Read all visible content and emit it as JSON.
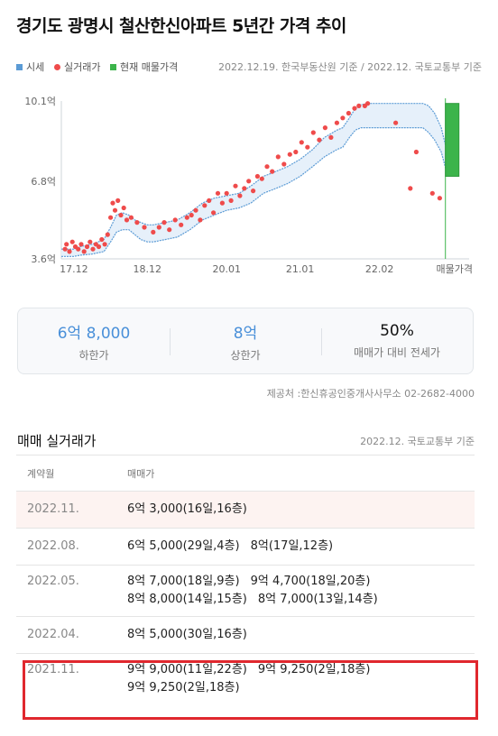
{
  "header": {
    "title": "경기도 광명시 철산한신아파트 5년간 가격 추이"
  },
  "legend": {
    "items": [
      {
        "label": "시세",
        "color": "#5b9bd5",
        "shape": "square"
      },
      {
        "label": "실거래가",
        "color": "#ef4b4b",
        "shape": "dot"
      },
      {
        "label": "현재 매물가격",
        "color": "#3cb44b",
        "shape": "square"
      }
    ],
    "source_note": "2022.12.19. 한국부동산원 기준 / 2022.12. 국토교통부 기준"
  },
  "chart_data": {
    "type": "scatter",
    "y_ticks": [
      "10.1억",
      "6.8억",
      "3.6억"
    ],
    "y_tick_values": [
      10.1,
      6.8,
      3.6
    ],
    "ylim": [
      3.6,
      10.1
    ],
    "x_ticks": [
      "17.12",
      "18.12",
      "20.01",
      "21.01",
      "22.02",
      "매물가격"
    ],
    "x_tick_values": [
      2017.92,
      2018.92,
      2020.0,
      2021.0,
      2022.08,
      2023.1
    ],
    "xlim": [
      2017.75,
      2023.3
    ],
    "series": [
      {
        "name": "시세",
        "type": "area-band",
        "color": "#5b9bd5",
        "x": [
          2017.75,
          2017.92,
          2018.0,
          2018.17,
          2018.33,
          2018.42,
          2018.5,
          2018.58,
          2018.67,
          2018.75,
          2018.83,
          2018.92,
          2019.0,
          2019.17,
          2019.33,
          2019.5,
          2019.67,
          2019.83,
          2020.0,
          2020.17,
          2020.33,
          2020.5,
          2020.67,
          2020.83,
          2021.0,
          2021.17,
          2021.33,
          2021.5,
          2021.58,
          2021.67,
          2021.75,
          2021.83,
          2021.92,
          2022.0,
          2022.17,
          2022.33,
          2022.5,
          2022.67,
          2022.75,
          2022.83,
          2022.92,
          2023.0
        ],
        "upper": [
          4.0,
          4.0,
          4.1,
          4.2,
          4.4,
          4.9,
          5.4,
          5.5,
          5.4,
          5.2,
          5.1,
          5.0,
          5.0,
          5.1,
          5.2,
          5.5,
          5.9,
          6.1,
          6.2,
          6.3,
          6.6,
          7.0,
          7.2,
          7.4,
          7.7,
          8.1,
          8.6,
          8.9,
          9.0,
          9.4,
          9.8,
          9.95,
          10.0,
          10.0,
          10.0,
          10.0,
          10.0,
          10.0,
          9.9,
          9.6,
          9.0,
          8.0
        ],
        "lower": [
          3.7,
          3.7,
          3.75,
          3.8,
          3.9,
          4.3,
          4.7,
          4.8,
          4.8,
          4.6,
          4.4,
          4.3,
          4.3,
          4.4,
          4.5,
          4.8,
          5.2,
          5.4,
          5.6,
          5.7,
          5.9,
          6.3,
          6.5,
          6.7,
          7.0,
          7.4,
          7.8,
          8.1,
          8.2,
          8.6,
          8.9,
          9.0,
          9.0,
          9.0,
          9.0,
          9.0,
          9.0,
          9.0,
          8.8,
          8.5,
          8.0,
          7.1
        ]
      },
      {
        "name": "실거래가",
        "type": "scatter",
        "color": "#ef4b4b",
        "x": [
          2017.8,
          2017.82,
          2017.86,
          2017.9,
          2017.94,
          2017.98,
          2018.02,
          2018.06,
          2018.1,
          2018.14,
          2018.18,
          2018.22,
          2018.26,
          2018.3,
          2018.34,
          2018.38,
          2018.42,
          2018.45,
          2018.48,
          2018.52,
          2018.56,
          2018.6,
          2018.64,
          2018.7,
          2018.78,
          2018.88,
          2019.0,
          2019.08,
          2019.15,
          2019.22,
          2019.3,
          2019.38,
          2019.46,
          2019.52,
          2019.58,
          2019.64,
          2019.7,
          2019.76,
          2019.82,
          2019.88,
          2019.94,
          2020.0,
          2020.06,
          2020.12,
          2020.18,
          2020.24,
          2020.3,
          2020.36,
          2020.42,
          2020.48,
          2020.55,
          2020.62,
          2020.7,
          2020.78,
          2020.86,
          2020.94,
          2021.02,
          2021.1,
          2021.18,
          2021.26,
          2021.34,
          2021.42,
          2021.5,
          2021.58,
          2021.66,
          2021.74,
          2021.8,
          2021.88,
          2021.92,
          2022.3,
          2022.5,
          2022.58,
          2022.8,
          2022.9
        ],
        "y": [
          4.0,
          4.2,
          3.9,
          4.3,
          4.1,
          4.0,
          4.2,
          3.9,
          4.1,
          4.3,
          4.0,
          4.2,
          4.1,
          4.4,
          4.2,
          4.6,
          5.3,
          5.9,
          5.6,
          6.0,
          5.4,
          5.7,
          5.2,
          5.3,
          5.1,
          4.9,
          4.7,
          4.9,
          5.1,
          4.8,
          5.2,
          5.0,
          5.3,
          5.4,
          5.6,
          5.2,
          5.8,
          6.0,
          5.5,
          6.3,
          5.9,
          6.3,
          6.0,
          6.6,
          6.2,
          6.5,
          6.8,
          6.4,
          7.0,
          6.9,
          7.4,
          7.2,
          7.8,
          7.5,
          7.9,
          8.0,
          8.4,
          8.2,
          8.8,
          8.5,
          9.0,
          8.6,
          9.2,
          9.4,
          9.6,
          9.8,
          9.9,
          9.9,
          10.0,
          9.2,
          6.5,
          8.0,
          6.3,
          6.1
        ]
      },
      {
        "name": "현재 매물가격",
        "type": "range-bar",
        "color": "#3cb44b",
        "x": 2023.1,
        "low": 7.0,
        "high": 10.0
      }
    ]
  },
  "summary": {
    "low_price": "6억 8,000",
    "low_label": "하한가",
    "high_price": "8억",
    "high_label": "상한가",
    "ratio": "50%",
    "ratio_label": "매매가 대비 전세가"
  },
  "provider": "제공처 :한신휴공인중개사사무소 02-2682-4000",
  "deals_section": {
    "title": "매매 실거래가",
    "note": "2022.12. 국토교통부 기준",
    "col_month": "계약월",
    "col_price": "매매가",
    "rows": [
      {
        "month": "2022.11.",
        "lines": [
          [
            "6억 3,000(16일,16층)"
          ]
        ]
      },
      {
        "month": "2022.08.",
        "lines": [
          [
            "6억 5,000(29일,4층)",
            "8억(17일,12층)"
          ]
        ]
      },
      {
        "month": "2022.05.",
        "lines": [
          [
            "8억 7,000(18일,9층)",
            "9억 4,700(18일,20층)"
          ],
          [
            "8억 8,000(14일,15층)",
            "8억 7,000(13일,14층)"
          ]
        ]
      },
      {
        "month": "2022.04.",
        "lines": [
          [
            "8억 5,000(30일,16층)"
          ]
        ]
      },
      {
        "month": "2021.11.",
        "lines": [
          [
            "9억 9,000(11일,22층)",
            "9억 9,250(2일,18층)"
          ],
          [
            "9억 9,250(2일,18층)"
          ]
        ]
      }
    ]
  }
}
